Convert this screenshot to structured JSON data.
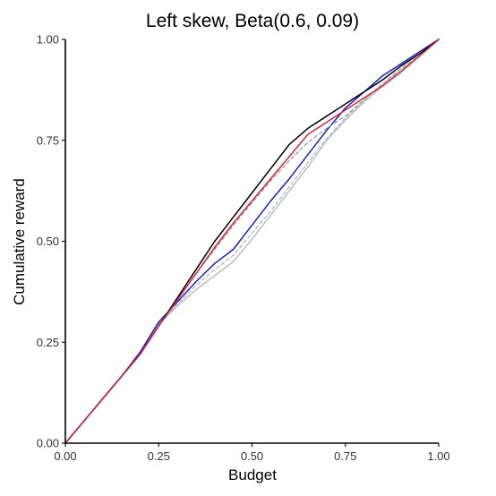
{
  "chart_data": {
    "type": "line",
    "title": "Left skew, Beta(0.6, 0.09)",
    "xlabel": "Budget",
    "ylabel": "Cumulative reward",
    "xlim": [
      0,
      1
    ],
    "ylim": [
      0,
      1
    ],
    "xticks": [
      "0.00",
      "0.25",
      "0.50",
      "0.75",
      "1.00"
    ],
    "yticks": [
      "0.00",
      "0.25",
      "0.50",
      "0.75",
      "1.00"
    ],
    "grid": false,
    "legend": "none",
    "series": [
      {
        "color": "#bdbdbd",
        "dash": "solid",
        "x": [
          0,
          0.05,
          0.1,
          0.15,
          0.2,
          0.25,
          0.3,
          0.35,
          0.4,
          0.45,
          0.5,
          0.55,
          0.6,
          0.65,
          0.7,
          0.75,
          0.8,
          0.85,
          0.9,
          0.95,
          1.0
        ],
        "y": [
          0,
          0.055,
          0.11,
          0.165,
          0.22,
          0.295,
          0.34,
          0.38,
          0.415,
          0.45,
          0.505,
          0.565,
          0.625,
          0.685,
          0.75,
          0.8,
          0.845,
          0.885,
          0.925,
          0.96,
          1.0
        ]
      },
      {
        "color": "#9fb6cf",
        "dash": "dashed",
        "x": [
          0,
          0.05,
          0.1,
          0.15,
          0.2,
          0.25,
          0.3,
          0.35,
          0.4,
          0.45,
          0.5,
          0.55,
          0.6,
          0.65,
          0.7,
          0.75,
          0.8,
          0.85,
          0.9,
          0.95,
          1.0
        ],
        "y": [
          0,
          0.055,
          0.11,
          0.165,
          0.22,
          0.295,
          0.345,
          0.39,
          0.43,
          0.465,
          0.52,
          0.575,
          0.635,
          0.695,
          0.755,
          0.805,
          0.85,
          0.89,
          0.93,
          0.96,
          1.0
        ]
      },
      {
        "color": "#1c1cd6",
        "dash": "solid",
        "x": [
          0,
          0.05,
          0.1,
          0.15,
          0.2,
          0.25,
          0.3,
          0.35,
          0.4,
          0.45,
          0.5,
          0.55,
          0.6,
          0.65,
          0.7,
          0.75,
          0.8,
          0.85,
          0.9,
          0.95,
          1.0
        ],
        "y": [
          0,
          0.055,
          0.11,
          0.165,
          0.225,
          0.3,
          0.35,
          0.4,
          0.445,
          0.48,
          0.54,
          0.6,
          0.655,
          0.715,
          0.775,
          0.83,
          0.87,
          0.91,
          0.94,
          0.97,
          1.0
        ]
      },
      {
        "color": "#999999",
        "dash": "dashed",
        "x": [
          0,
          0.05,
          0.1,
          0.15,
          0.2,
          0.25,
          0.3,
          0.35,
          0.4,
          0.45,
          0.5,
          0.55,
          0.6,
          0.65,
          0.7,
          0.75,
          0.8,
          0.85,
          0.9,
          0.95,
          1.0
        ],
        "y": [
          0,
          0.055,
          0.11,
          0.165,
          0.22,
          0.29,
          0.355,
          0.42,
          0.48,
          0.54,
          0.595,
          0.65,
          0.7,
          0.745,
          0.78,
          0.81,
          0.85,
          0.89,
          0.925,
          0.96,
          1.0
        ]
      },
      {
        "color": "#000000",
        "dash": "solid",
        "x": [
          0,
          0.05,
          0.1,
          0.15,
          0.2,
          0.25,
          0.3,
          0.35,
          0.4,
          0.45,
          0.5,
          0.55,
          0.6,
          0.65,
          0.7,
          0.75,
          0.8,
          0.85,
          0.9,
          0.95,
          1.0
        ],
        "y": [
          0,
          0.055,
          0.11,
          0.165,
          0.22,
          0.29,
          0.36,
          0.43,
          0.5,
          0.56,
          0.62,
          0.68,
          0.74,
          0.78,
          0.81,
          0.84,
          0.87,
          0.9,
          0.935,
          0.965,
          1.0
        ]
      },
      {
        "color": "#d7263d",
        "dash": "solid",
        "x": [
          0,
          0.05,
          0.1,
          0.15,
          0.2,
          0.25,
          0.3,
          0.35,
          0.4,
          0.45,
          0.5,
          0.55,
          0.6,
          0.65,
          0.7,
          0.75,
          0.8,
          0.85,
          0.9,
          0.95,
          1.0
        ],
        "y": [
          0,
          0.055,
          0.11,
          0.165,
          0.22,
          0.29,
          0.355,
          0.42,
          0.485,
          0.545,
          0.6,
          0.655,
          0.71,
          0.765,
          0.795,
          0.825,
          0.855,
          0.885,
          0.92,
          0.96,
          1.0
        ]
      }
    ]
  }
}
